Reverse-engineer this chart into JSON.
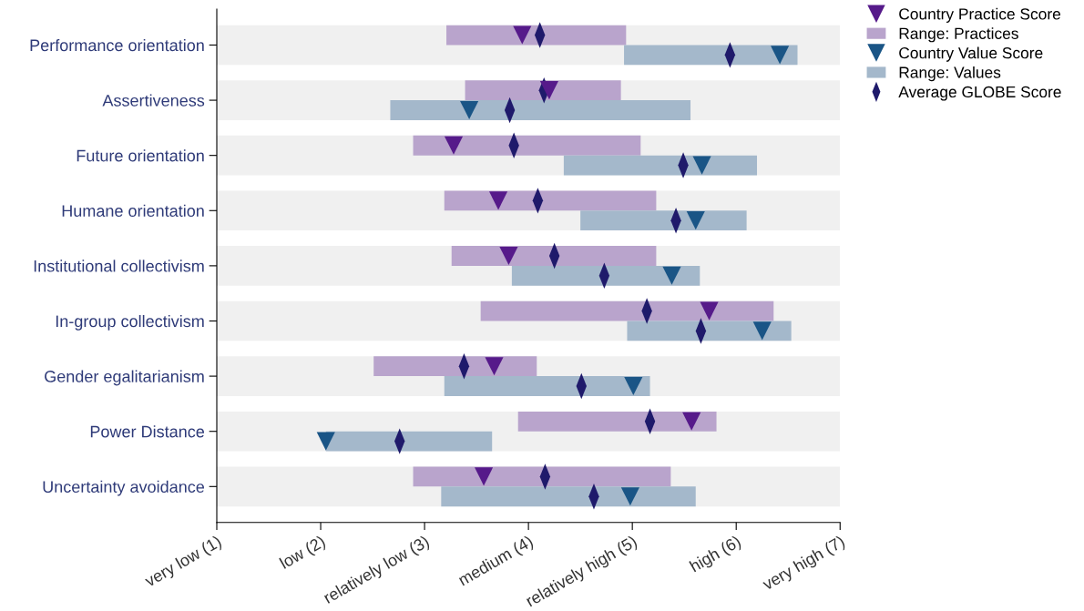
{
  "chart_data": {
    "type": "bar",
    "orientation": "horizontal",
    "categories": [
      "Performance orientation",
      "Assertiveness",
      "Future orientation",
      "Humane orientation",
      "Institutional collectivism",
      "In-group collectivism",
      "Gender egalitarianism",
      "Power Distance",
      "Uncertainty avoidance"
    ],
    "xlim": [
      1,
      7
    ],
    "xticks": [
      {
        "value": 1,
        "label": "very low (1)"
      },
      {
        "value": 2,
        "label": "low (2)"
      },
      {
        "value": 3,
        "label": "relatively low (3)"
      },
      {
        "value": 4,
        "label": "medium (4)"
      },
      {
        "value": 5,
        "label": "relatively high (5)"
      },
      {
        "value": 6,
        "label": "high (6)"
      },
      {
        "value": 7,
        "label": "very high (7)"
      }
    ],
    "bands": [
      {
        "axis": "y",
        "from": "Performance orientation",
        "to": "Performance orientation",
        "color": "#f0f0f0"
      },
      {
        "axis": "y",
        "from": "Assertiveness",
        "to": "Assertiveness",
        "color": "#f0f0f0"
      },
      {
        "axis": "y",
        "from": "Future orientation",
        "to": "Future orientation",
        "color": "#f0f0f0"
      },
      {
        "axis": "y",
        "from": "Humane orientation",
        "to": "Humane orientation",
        "color": "#f0f0f0"
      },
      {
        "axis": "y",
        "from": "Institutional collectivism",
        "to": "Institutional collectivism",
        "color": "#f0f0f0"
      },
      {
        "axis": "y",
        "from": "In-group collectivism",
        "to": "In-group collectivism",
        "color": "#f0f0f0"
      },
      {
        "axis": "y",
        "from": "Gender egalitarianism",
        "to": "Gender egalitarianism",
        "color": "#f0f0f0"
      },
      {
        "axis": "y",
        "from": "Power Distance",
        "to": "Power Distance",
        "color": "#f0f0f0"
      },
      {
        "axis": "y",
        "from": "Uncertainty avoidance",
        "to": "Uncertainty avoidance",
        "color": "#f0f0f0"
      }
    ],
    "legend": "top right",
    "series": [
      {
        "name": "Range: Practices",
        "color": "#b9a4cc",
        "base": [
          3.21,
          3.39,
          2.89,
          3.19,
          3.26,
          3.54,
          2.51,
          3.9,
          2.89
        ],
        "values": [
          1.73,
          1.5,
          2.19,
          2.04,
          1.97,
          2.82,
          1.57,
          1.91,
          2.48
        ]
      },
      {
        "name": "Range: Values",
        "color": "#a4b8cb",
        "base": [
          4.92,
          2.67,
          4.34,
          4.5,
          3.84,
          4.95,
          3.19,
          2.05,
          3.16
        ],
        "values": [
          1.67,
          2.89,
          1.86,
          1.6,
          1.81,
          1.58,
          1.98,
          1.6,
          2.45
        ]
      },
      {
        "name": "Average GLOBE Score",
        "type": "scatter",
        "marker": "diamond",
        "color": "#1f1a6b",
        "values": [
          4.11,
          4.15,
          3.86,
          4.09,
          4.25,
          5.14,
          3.38,
          5.17,
          4.16
        ]
      },
      {
        "type": "scatter",
        "marker": "diamond",
        "color": "#1f1a6b",
        "values": [
          5.94,
          3.82,
          5.49,
          5.42,
          4.73,
          5.66,
          4.51,
          2.76,
          4.63
        ]
      },
      {
        "name": "Country Practice Score",
        "type": "scatter",
        "marker": "triangle",
        "color": "#561a8a",
        "values": [
          3.94,
          4.2,
          3.28,
          3.71,
          3.81,
          5.74,
          3.67,
          5.57,
          3.57
        ]
      },
      {
        "name": "Country Value Score",
        "type": "scatter",
        "marker": "triangle",
        "color": "#1a5586",
        "values": [
          6.42,
          3.43,
          5.67,
          5.61,
          5.38,
          6.25,
          5.01,
          2.05,
          4.98
        ]
      }
    ]
  }
}
